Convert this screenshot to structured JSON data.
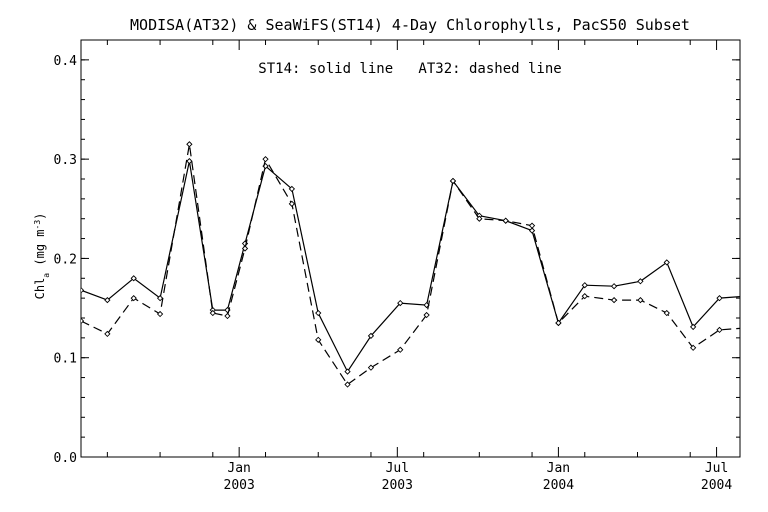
{
  "chart_data": {
    "type": "line",
    "title": "MODISA(AT32) & SeaWiFS(ST14) 4-Day Chlorophylls, PacS50 Subset",
    "annotation": "ST14: solid line   AT32: dashed line",
    "ylabel": {
      "main": "Chl",
      "sub": "a",
      "units_open": " (mg m",
      "units_sup": "-3",
      "units_close": ")"
    },
    "xlabel": "",
    "xlim": [
      2002.25,
      2004.5
    ],
    "ylim": [
      0.0,
      0.42
    ],
    "grid": false,
    "y_ticks": [
      {
        "value": 0.0,
        "label": "0.0"
      },
      {
        "value": 0.1,
        "label": "0.1"
      },
      {
        "value": 0.2,
        "label": "0.2"
      },
      {
        "value": 0.3,
        "label": "0.3"
      },
      {
        "value": 0.4,
        "label": "0.4"
      }
    ],
    "x_ticks": [
      {
        "value": 2002.79,
        "month": "Jan",
        "year": "2003"
      },
      {
        "value": 2003.33,
        "month": "Jul",
        "year": "2003"
      },
      {
        "value": 2003.88,
        "month": "Jan",
        "year": "2004"
      },
      {
        "value": 2004.42,
        "month": "Jul",
        "year": "2004"
      }
    ],
    "x_minor_ticks": [
      2002.34,
      2002.52,
      2002.7,
      2002.88,
      2003.06,
      2003.24,
      2003.42,
      2003.61,
      2003.79,
      2003.97,
      2004.15,
      2004.33
    ],
    "series": [
      {
        "style": "solid",
        "x": [
          2002.25,
          2002.34,
          2002.43,
          2002.52,
          2002.62,
          2002.7,
          2002.75,
          2002.81,
          2002.88,
          2002.97,
          2003.06,
          2003.16,
          2003.24,
          2003.34,
          2003.43,
          2003.52,
          2003.61,
          2003.7,
          2003.79,
          2003.88,
          2003.97,
          2004.07,
          2004.16,
          2004.25,
          2004.34,
          2004.43,
          2004.52
        ],
        "y": [
          0.168,
          0.158,
          0.18,
          0.16,
          0.298,
          0.148,
          0.148,
          0.215,
          0.293,
          0.27,
          0.145,
          0.086,
          0.122,
          0.155,
          0.153,
          0.278,
          0.243,
          0.238,
          0.228,
          0.135,
          0.173,
          0.172,
          0.177,
          0.196,
          0.131,
          0.16,
          0.162
        ]
      },
      {
        "style": "dashed",
        "x": [
          2002.25,
          2002.34,
          2002.43,
          2002.52,
          2002.62,
          2002.7,
          2002.75,
          2002.81,
          2002.88,
          2002.97,
          2003.06,
          2003.16,
          2003.24,
          2003.34,
          2003.43,
          2003.52,
          2003.61,
          2003.7,
          2003.79,
          2003.88,
          2003.97,
          2004.07,
          2004.16,
          2004.25,
          2004.34,
          2004.43,
          2004.52
        ],
        "y": [
          0.137,
          0.124,
          0.16,
          0.144,
          0.315,
          0.145,
          0.142,
          0.21,
          0.3,
          0.255,
          0.118,
          0.073,
          0.09,
          0.108,
          0.143,
          0.278,
          0.24,
          0.238,
          0.233,
          0.135,
          0.162,
          0.158,
          0.158,
          0.145,
          0.11,
          0.128,
          0.13
        ]
      }
    ]
  }
}
